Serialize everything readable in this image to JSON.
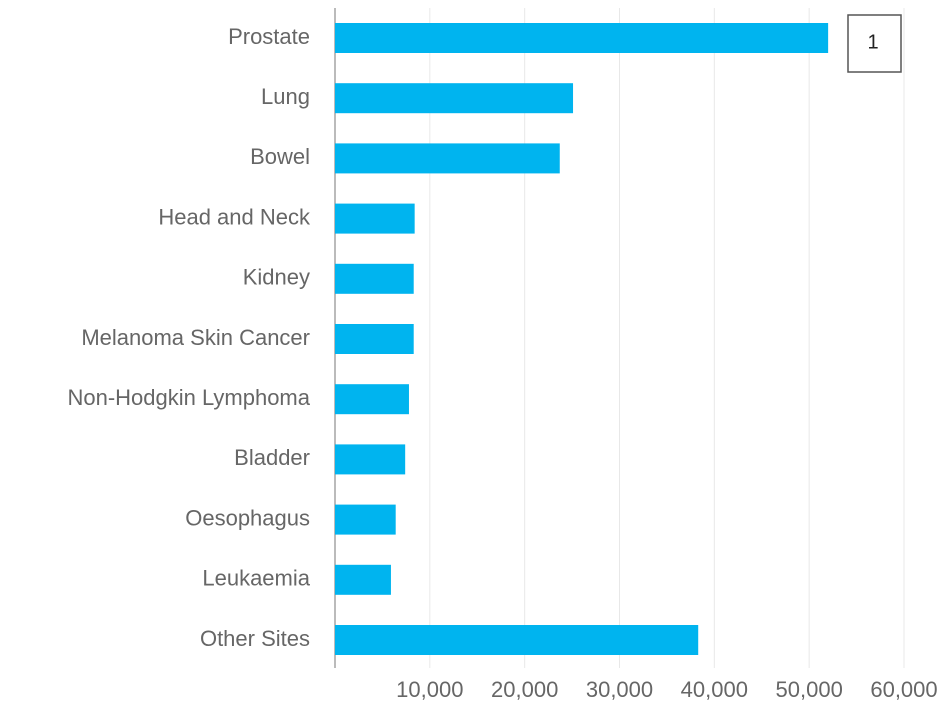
{
  "chart_data": {
    "type": "bar",
    "orientation": "horizontal",
    "categories": [
      "Prostate",
      "Lung",
      "Bowel",
      "Head and Neck",
      "Kidney",
      "Melanoma Skin Cancer",
      "Non-Hodgkin Lymphoma",
      "Bladder",
      "Oesophagus",
      "Leukaemia",
      "Other Sites"
    ],
    "values": [
      52000,
      25100,
      23700,
      8400,
      8300,
      8300,
      7800,
      7400,
      6400,
      5900,
      38300
    ],
    "color": "#00b4ef",
    "xlim": [
      0,
      60000
    ],
    "xticks": [
      {
        "value": 10000,
        "label": "10,000"
      },
      {
        "value": 20000,
        "label": "20,000"
      },
      {
        "value": 30000,
        "label": "30,000"
      },
      {
        "value": 40000,
        "label": "40,000"
      },
      {
        "value": 50000,
        "label": "50,000"
      },
      {
        "value": 60000,
        "label": "60,000"
      }
    ],
    "grid": true,
    "annotation": "1"
  }
}
